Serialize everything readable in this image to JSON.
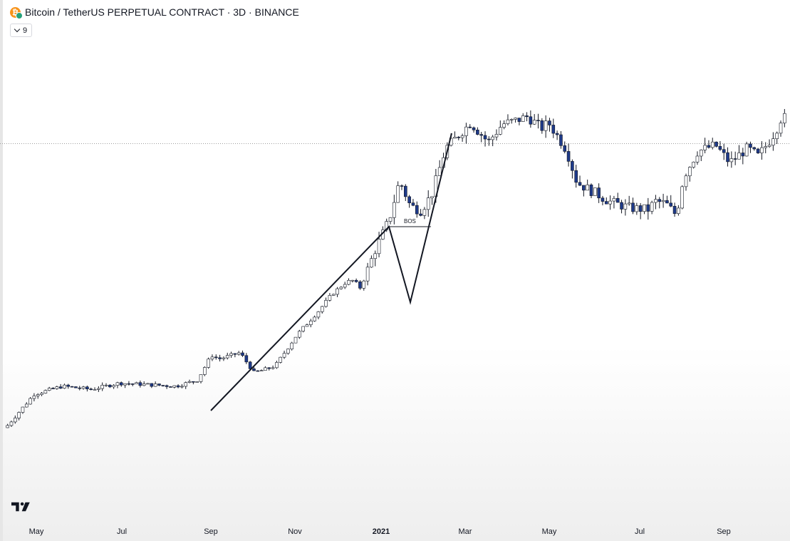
{
  "header": {
    "title": "Bitcoin / TetherUS PERPETUAL CONTRACT · 3D · BINANCE",
    "icon": "bitcoin-coin-icon",
    "indicator_badge": "9"
  },
  "colors": {
    "bull_fill": "#ffffff",
    "bear_fill": "#1e3a8a",
    "candle_border": "#131722",
    "drawing_line": "#131722",
    "price_line": "#9e9e9e"
  },
  "chart_data": {
    "type": "candlestick",
    "symbol": "Bitcoin / TetherUS PERPETUAL CONTRACT",
    "timeframe": "3D",
    "exchange": "BINANCE",
    "x_tick_labels": [
      {
        "label": "May",
        "bold": false
      },
      {
        "label": "Jul",
        "bold": false
      },
      {
        "label": "Sep",
        "bold": false
      },
      {
        "label": "Nov",
        "bold": false
      },
      {
        "label": "2021",
        "bold": true
      },
      {
        "label": "Mar",
        "bold": false
      },
      {
        "label": "May",
        "bold": false
      },
      {
        "label": "Jul",
        "bold": false
      },
      {
        "label": "Sep",
        "bold": false
      }
    ],
    "close_path": [
      7000,
      8800,
      9300,
      9100,
      9500,
      9400,
      9300,
      9700,
      11500,
      11200,
      11700,
      10200,
      10500,
      10700,
      13200,
      15500,
      17500,
      19000,
      19200,
      18200,
      23500,
      29000,
      38000,
      32000,
      31000,
      34500,
      47500,
      56500,
      49500,
      56000,
      57500,
      59000,
      54500,
      56500,
      47000,
      37500,
      35000,
      33000,
      31500,
      31200,
      33000,
      32500,
      30000,
      39000,
      46500,
      48500,
      43000,
      47500,
      45000,
      49500,
      53500,
      60000,
      57000
    ],
    "path_dates_fraction": [
      0.0,
      0.04,
      0.08,
      0.12,
      0.16,
      0.2,
      0.24,
      0.27,
      0.29,
      0.3,
      0.33,
      0.35,
      0.37,
      0.38,
      0.41,
      0.44,
      0.46,
      0.48,
      0.49,
      0.5,
      0.52,
      0.54,
      0.555,
      0.57,
      0.585,
      0.6,
      0.62,
      0.655,
      0.68,
      0.7,
      0.72,
      0.735,
      0.755,
      0.765,
      0.79,
      0.805,
      0.83,
      0.85,
      0.88,
      0.905,
      0.915,
      0.93,
      0.945,
      0.955,
      0.975,
      1.0,
      1.02,
      1.045,
      1.06,
      1.075,
      1.085,
      1.095,
      1.1
    ],
    "annotations": [
      {
        "type": "label",
        "text": "BOS"
      },
      {
        "type": "swing-structure",
        "description": "swing low to swing high leg, pullback, break of structure"
      },
      {
        "type": "horizontal-price-line",
        "style": "dotted"
      }
    ]
  }
}
